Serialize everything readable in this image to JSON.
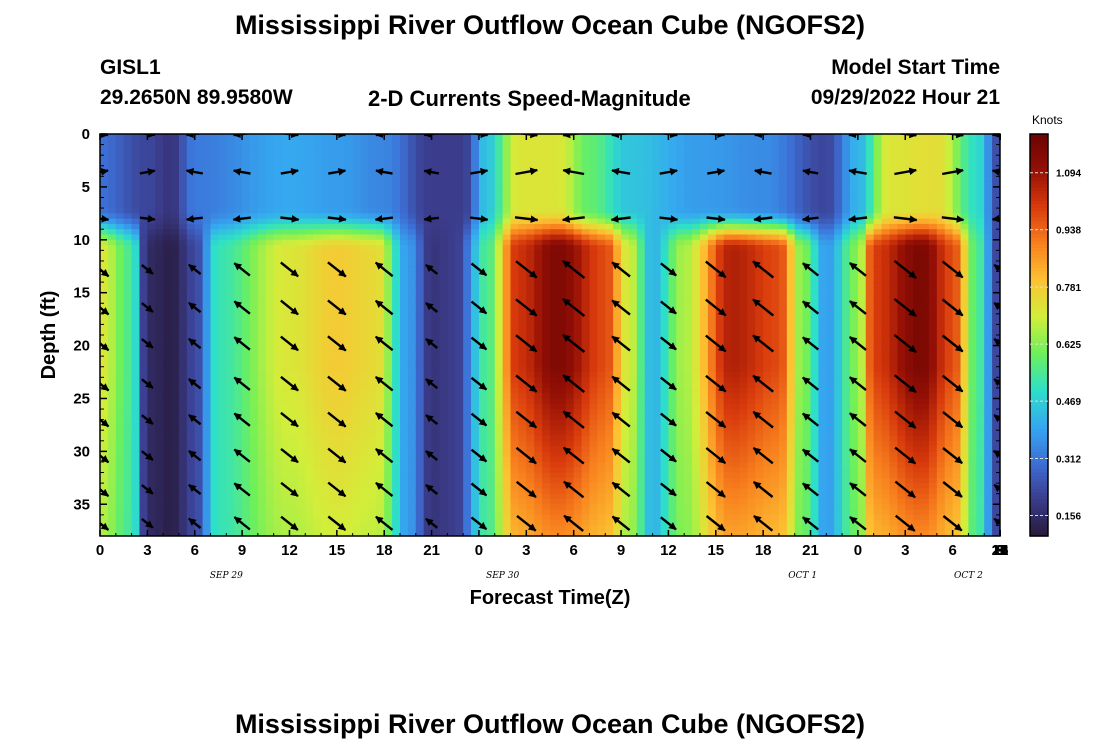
{
  "header": {
    "title": "Mississippi River Outflow Ocean Cube (NGOFS2)",
    "station": "GISL1",
    "coords": "29.2650N  89.9580W",
    "plot_name": "2-D Currents Speed-Magnitude",
    "model_start_label": "Model Start Time",
    "model_start_value": "09/29/2022 Hour 21",
    "footer_title": "Mississippi River Outflow Ocean Cube (NGOFS2)"
  },
  "colorbar": {
    "unit": "Knots",
    "ticks": [
      "1.094",
      "0.938",
      "0.781",
      "0.625",
      "0.469",
      "0.312",
      "0.156"
    ],
    "min": 0.1,
    "max": 1.2,
    "colors": [
      "#271a3a",
      "#3b3c8c",
      "#3d6fd6",
      "#35a8f0",
      "#2ee0c8",
      "#6ef05a",
      "#d2ee3a",
      "#fcc232",
      "#f8801e",
      "#d83a0c",
      "#961005",
      "#6a0404"
    ]
  },
  "chart_data": {
    "type": "heatmap",
    "title": "2-D Currents Speed-Magnitude",
    "xlabel": "Forecast Time(Z)",
    "ylabel": "Depth (ft)",
    "x_range_hours": [
      0,
      57
    ],
    "x_tick_labels": [
      "0",
      "3",
      "6",
      "9",
      "12",
      "15",
      "18",
      "21",
      "0",
      "3",
      "6",
      "9",
      "12",
      "15",
      "18",
      "21",
      "0",
      "3",
      "6",
      "9",
      "12",
      "15",
      "18",
      "21",
      "0",
      "3",
      "6"
    ],
    "date_labels": [
      "SEP 29",
      "SEP 30",
      "OCT 1",
      "OCT 2"
    ],
    "date_label_hours": [
      8,
      25.5,
      44.5,
      55
    ],
    "y_range_ft": [
      0,
      38
    ],
    "y_tick_labels": [
      "0",
      "5",
      "10",
      "15",
      "20",
      "25",
      "30",
      "35"
    ],
    "y_tick_values": [
      0,
      5,
      10,
      15,
      20,
      25,
      30,
      35
    ],
    "value_unit": "Knots",
    "value_range": [
      0.1,
      1.2
    ],
    "deep_layer_profile": {
      "time_hours": [
        0,
        2,
        3,
        4.5,
        6,
        7.5,
        12,
        15,
        17.5,
        19.5,
        21,
        22.5,
        24.5,
        26.5,
        29,
        32,
        33.5,
        35,
        37,
        40,
        43,
        44.5,
        46,
        48,
        49,
        52,
        54,
        55.5,
        57
      ],
      "speed_knots": [
        0.72,
        0.55,
        0.15,
        0.12,
        0.22,
        0.52,
        0.72,
        0.78,
        0.75,
        0.38,
        0.18,
        0.2,
        0.55,
        1.02,
        1.15,
        0.98,
        0.7,
        0.42,
        0.66,
        1.06,
        0.98,
        0.62,
        0.38,
        0.62,
        1.0,
        1.16,
        0.98,
        0.56,
        0.2
      ]
    },
    "surface_layer_profile": {
      "time_hours": [
        0,
        3,
        4.5,
        6,
        12,
        15,
        18,
        21,
        23,
        24.5,
        26.5,
        29,
        31,
        33.5,
        38,
        42,
        46,
        48,
        50,
        53,
        55.5,
        57
      ],
      "speed_knots": [
        0.3,
        0.22,
        0.18,
        0.32,
        0.4,
        0.38,
        0.34,
        0.2,
        0.2,
        0.45,
        0.72,
        0.72,
        0.58,
        0.45,
        0.38,
        0.35,
        0.22,
        0.42,
        0.72,
        0.74,
        0.5,
        0.22
      ]
    },
    "surface_layer_depth_ft": [
      0,
      7
    ],
    "transition_layer_depth_ft": [
      7,
      11
    ],
    "arrow_rows_ft": [
      0,
      3.6,
      8,
      12.8,
      16.4,
      19.8,
      23.6,
      27,
      30.4,
      33.6,
      36.8
    ],
    "arrow_columns_hours": [
      0,
      3,
      6,
      9,
      12,
      15,
      18,
      21,
      24,
      27,
      30,
      33,
      36,
      39,
      42,
      45,
      48,
      51,
      54,
      57
    ],
    "arrow_direction_pattern": "surface rows point alternately west/east; deep rows point NW/SE alternating with the tide"
  }
}
